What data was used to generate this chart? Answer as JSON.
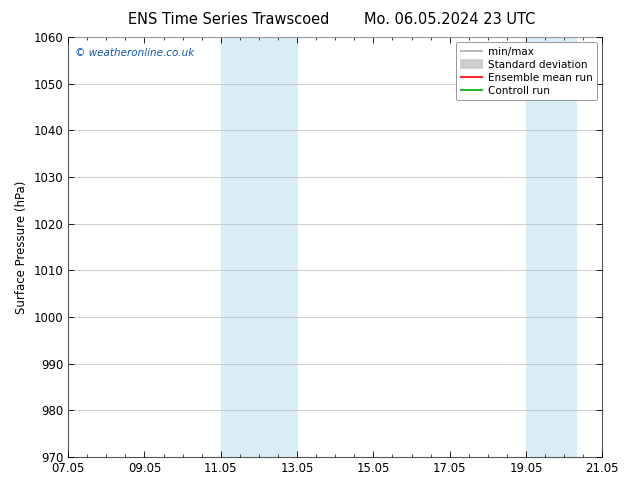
{
  "title_left": "ENS Time Series Trawscoed",
  "title_right": "Mo. 06.05.2024 23 UTC",
  "ylabel": "Surface Pressure (hPa)",
  "ylim": [
    970,
    1060
  ],
  "yticks": [
    970,
    980,
    990,
    1000,
    1010,
    1020,
    1030,
    1040,
    1050,
    1060
  ],
  "xlim_start": 0,
  "xlim_end": 14,
  "xtick_labels": [
    "07.05",
    "09.05",
    "11.05",
    "13.05",
    "15.05",
    "17.05",
    "19.05",
    "21.05"
  ],
  "xtick_positions": [
    0,
    2,
    4,
    6,
    8,
    10,
    12,
    14
  ],
  "shaded_bands": [
    {
      "xmin": 4.0,
      "xmax": 6.0
    },
    {
      "xmin": 12.0,
      "xmax": 13.3
    }
  ],
  "shade_color": "#daedf7",
  "watermark": "© weatheronline.co.uk",
  "watermark_color": "#1155aa",
  "legend_items": [
    {
      "label": "min/max",
      "color": "#aaaaaa",
      "lw": 1.2,
      "style": "line"
    },
    {
      "label": "Standard deviation",
      "color": "#cccccc",
      "lw": 7,
      "style": "line"
    },
    {
      "label": "Ensemble mean run",
      "color": "#ff0000",
      "lw": 1.2,
      "style": "line"
    },
    {
      "label": "Controll run",
      "color": "#00aa00",
      "lw": 1.2,
      "style": "line"
    }
  ],
  "background_color": "#ffffff",
  "grid_color": "#bbbbbb",
  "title_fontsize": 10.5,
  "tick_fontsize": 8.5,
  "ylabel_fontsize": 8.5,
  "watermark_fontsize": 7.5,
  "legend_fontsize": 7.5
}
